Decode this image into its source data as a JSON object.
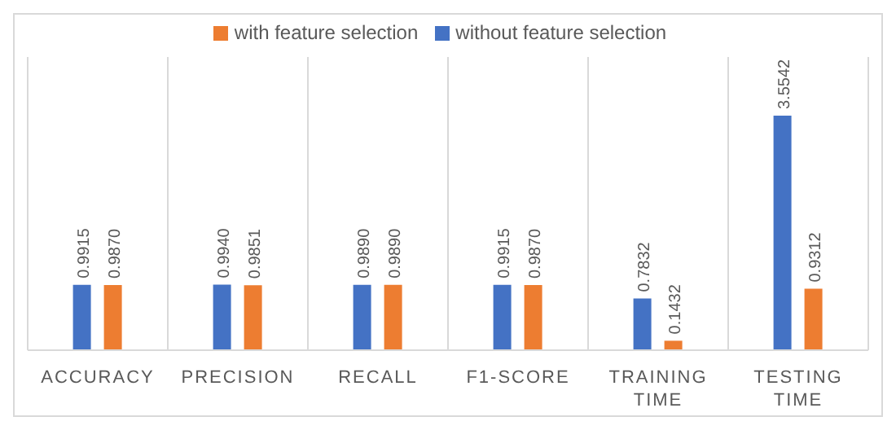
{
  "chart_data": {
    "type": "bar",
    "categories": [
      "ACCURACY",
      "PRECISION",
      "RECALL",
      "F1-SCORE",
      "TRAINING TIME",
      "TESTING TIME"
    ],
    "series": [
      {
        "name": "without feature selection",
        "color": "#4472c4",
        "values": [
          0.9915,
          0.994,
          0.989,
          0.9915,
          0.7832,
          3.5542
        ],
        "value_labels": [
          "0.9915",
          "0.9940",
          "0.9890",
          "0.9915",
          "0.7832",
          "3.5542"
        ]
      },
      {
        "name": "with feature selection",
        "color": "#ed7d31",
        "values": [
          0.987,
          0.9851,
          0.989,
          0.987,
          0.1432,
          0.9312
        ],
        "value_labels": [
          "0.9870",
          "0.9851",
          "0.9890",
          "0.9870",
          "0.1432",
          "0.9312"
        ]
      }
    ],
    "grid": "x",
    "legend": "top"
  }
}
